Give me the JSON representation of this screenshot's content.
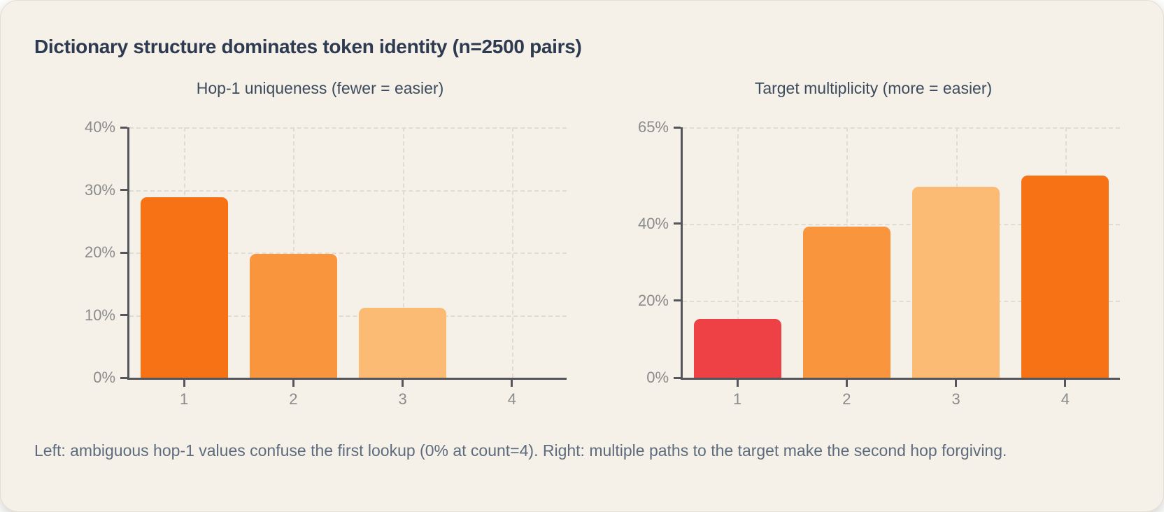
{
  "page": {
    "title": "Dictionary structure dominates token identity (n=2500 pairs)",
    "caption": "Left: ambiguous hop-1 values confuse the first lookup (0% at count=4). Right: multiple paths to the target make the second hop forgiving."
  },
  "colors": {
    "card_bg": "#f5f1e8",
    "page_bg": "#ffffff",
    "title_text": "#2d3a4f",
    "subtitle_text": "#3d4a5c",
    "tick_label": "#8b8b8b",
    "caption_text": "#5d6b7d",
    "axis": "#54565b",
    "grid": "#e0dcd2",
    "red": "#ee4145",
    "orange_strong": "#f77214",
    "orange_mid": "#f9953d",
    "orange_light": "#fcbb74"
  },
  "chart_data": [
    {
      "type": "bar",
      "title": "Hop-1 uniqueness (fewer = easier)",
      "categories": [
        "1",
        "2",
        "3",
        "4"
      ],
      "values": [
        28.8,
        19.8,
        11.2,
        0
      ],
      "unit": "%",
      "ylim": [
        0,
        40
      ],
      "yticks": [
        0,
        10,
        20,
        30,
        40
      ],
      "grid": "dashed-horizontal-and-vertical",
      "legend": "none",
      "bar_colors": [
        "#f77214",
        "#f9953d",
        "#fcbb74",
        null
      ]
    },
    {
      "type": "bar",
      "title": "Target multiplicity (more = easier)",
      "categories": [
        "1",
        "2",
        "3",
        "4"
      ],
      "values": [
        15.2,
        39.2,
        49.5,
        52.5
      ],
      "unit": "%",
      "ylim": [
        0,
        65
      ],
      "yticks": [
        0,
        20,
        40,
        65
      ],
      "grid": "dashed-horizontal-and-vertical",
      "legend": "none",
      "bar_colors": [
        "#ee4145",
        "#f9953d",
        "#fcbb74",
        "#f77214"
      ]
    }
  ]
}
